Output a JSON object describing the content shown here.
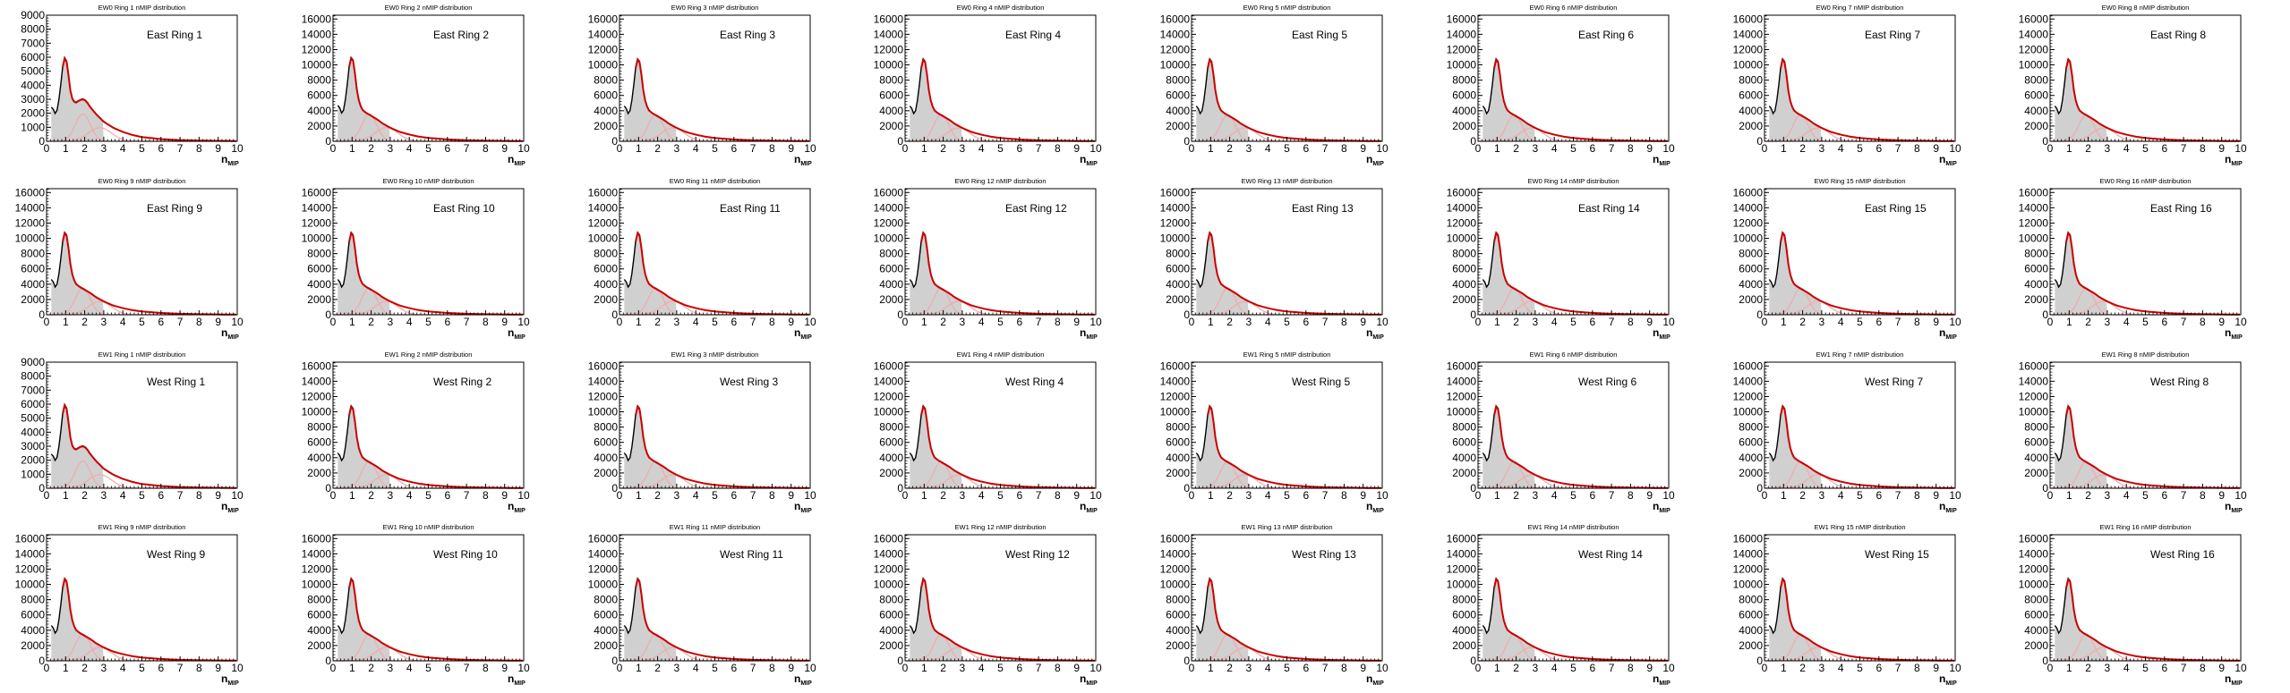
{
  "chart_data": {
    "type": "histogram-grid",
    "layout": {
      "rows": 4,
      "cols": 8
    },
    "xlabel": "n",
    "xlabel_sub": "MIP",
    "xlim": [
      0,
      10
    ],
    "x_ticks": [
      "0",
      "1",
      "2",
      "3",
      "4",
      "5",
      "6",
      "7",
      "8",
      "9",
      "10"
    ],
    "colors": {
      "fill": "#d0d0d0",
      "fit": "#cc0000",
      "pink": "#f2aaaa",
      "data": "#000000"
    },
    "shape": {
      "x": [
        0.3,
        0.5,
        0.7,
        0.8,
        0.9,
        1.0,
        1.1,
        1.2,
        1.3,
        1.5,
        1.7,
        2.0,
        2.3,
        2.6,
        3.0,
        3.5,
        4.0,
        4.5,
        5.0,
        6.0,
        7.0,
        8.0,
        9.0,
        10.0
      ],
      "rel": [
        0.42,
        0.3,
        0.55,
        0.8,
        0.96,
        1.0,
        0.9,
        0.7,
        0.52,
        0.38,
        0.34,
        0.3,
        0.26,
        0.21,
        0.16,
        0.11,
        0.08,
        0.055,
        0.04,
        0.022,
        0.012,
        0.007,
        0.004,
        0.002
      ]
    },
    "shape_double": {
      "x": [
        0.3,
        0.5,
        0.7,
        0.8,
        0.9,
        1.0,
        1.1,
        1.2,
        1.3,
        1.5,
        1.7,
        1.9,
        2.1,
        2.3,
        2.6,
        3.0,
        3.5,
        4.0,
        4.5,
        5.0,
        6.0,
        7.0,
        8.0,
        9.0,
        10.0
      ],
      "rel": [
        0.4,
        0.3,
        0.55,
        0.8,
        0.96,
        1.0,
        0.88,
        0.68,
        0.52,
        0.45,
        0.48,
        0.5,
        0.47,
        0.4,
        0.32,
        0.23,
        0.16,
        0.11,
        0.075,
        0.05,
        0.026,
        0.014,
        0.008,
        0.005,
        0.003
      ]
    },
    "panels": [
      {
        "title": "EW0 Ring 1 nMIP distribution",
        "label": "East Ring 1",
        "yticks": [
          "0",
          "1000",
          "2000",
          "3000",
          "4000",
          "5000",
          "6000",
          "7000",
          "8000",
          "9000"
        ],
        "ymax": 9000,
        "peak": 6100,
        "double": true
      },
      {
        "title": "EW0 Ring 2 nMIP distribution",
        "label": "East Ring 2",
        "yticks": [
          "0",
          "2000",
          "4000",
          "6000",
          "8000",
          "10000",
          "12000",
          "14000",
          "16000"
        ],
        "ymax": 16500,
        "peak": 11200,
        "double": false
      },
      {
        "title": "EW0 Ring 3 nMIP distribution",
        "label": "East Ring 3",
        "yticks": [
          "0",
          "2000",
          "4000",
          "6000",
          "8000",
          "10000",
          "12000",
          "14000",
          "16000"
        ],
        "ymax": 16500,
        "peak": 11000,
        "double": false
      },
      {
        "title": "EW0 Ring 4 nMIP distribution",
        "label": "East Ring 4",
        "yticks": [
          "0",
          "2000",
          "4000",
          "6000",
          "8000",
          "10000",
          "12000",
          "14000",
          "16000"
        ],
        "ymax": 16500,
        "peak": 11000,
        "double": false
      },
      {
        "title": "EW0 Ring 5 nMIP distribution",
        "label": "East Ring 5",
        "yticks": [
          "0",
          "2000",
          "4000",
          "6000",
          "8000",
          "10000",
          "12000",
          "14000",
          "16000"
        ],
        "ymax": 16500,
        "peak": 11000,
        "double": false
      },
      {
        "title": "EW0 Ring 6 nMIP distribution",
        "label": "East Ring 6",
        "yticks": [
          "0",
          "2000",
          "4000",
          "6000",
          "8000",
          "10000",
          "12000",
          "14000",
          "16000"
        ],
        "ymax": 16500,
        "peak": 11000,
        "double": false
      },
      {
        "title": "EW0 Ring 7 nMIP distribution",
        "label": "East Ring 7",
        "yticks": [
          "0",
          "2000",
          "4000",
          "6000",
          "8000",
          "10000",
          "12000",
          "14000",
          "16000"
        ],
        "ymax": 16500,
        "peak": 11000,
        "double": false
      },
      {
        "title": "EW0 Ring 8 nMIP distribution",
        "label": "East Ring 8",
        "yticks": [
          "0",
          "2000",
          "4000",
          "6000",
          "8000",
          "10000",
          "12000",
          "14000",
          "16000"
        ],
        "ymax": 16500,
        "peak": 11000,
        "double": false
      },
      {
        "title": "EW0 Ring 9 nMIP distribution",
        "label": "East Ring 9",
        "yticks": [
          "0",
          "2000",
          "4000",
          "6000",
          "8000",
          "10000",
          "12000",
          "14000",
          "16000"
        ],
        "ymax": 16500,
        "peak": 11000,
        "double": false
      },
      {
        "title": "EW0 Ring 10 nMIP distribution",
        "label": "East Ring 10",
        "yticks": [
          "0",
          "2000",
          "4000",
          "6000",
          "8000",
          "10000",
          "12000",
          "14000",
          "16000"
        ],
        "ymax": 16500,
        "peak": 11000,
        "double": false
      },
      {
        "title": "EW0 Ring 11 nMIP distribution",
        "label": "East Ring 11",
        "yticks": [
          "0",
          "2000",
          "4000",
          "6000",
          "8000",
          "10000",
          "12000",
          "14000",
          "16000"
        ],
        "ymax": 16500,
        "peak": 11000,
        "double": false
      },
      {
        "title": "EW0 Ring 12 nMIP distribution",
        "label": "East Ring 12",
        "yticks": [
          "0",
          "2000",
          "4000",
          "6000",
          "8000",
          "10000",
          "12000",
          "14000",
          "16000"
        ],
        "ymax": 16500,
        "peak": 11000,
        "double": false
      },
      {
        "title": "EW0 Ring 13 nMIP distribution",
        "label": "East Ring 13",
        "yticks": [
          "0",
          "2000",
          "4000",
          "6000",
          "8000",
          "10000",
          "12000",
          "14000",
          "16000"
        ],
        "ymax": 16500,
        "peak": 11000,
        "double": false
      },
      {
        "title": "EW0 Ring 14 nMIP distribution",
        "label": "East Ring 14",
        "yticks": [
          "0",
          "2000",
          "4000",
          "6000",
          "8000",
          "10000",
          "12000",
          "14000",
          "16000"
        ],
        "ymax": 16500,
        "peak": 11000,
        "double": false
      },
      {
        "title": "EW0 Ring 15 nMIP distribution",
        "label": "East Ring 15",
        "yticks": [
          "0",
          "2000",
          "4000",
          "6000",
          "8000",
          "10000",
          "12000",
          "14000",
          "16000"
        ],
        "ymax": 16500,
        "peak": 11000,
        "double": false
      },
      {
        "title": "EW0 Ring 16 nMIP distribution",
        "label": "East Ring 16",
        "yticks": [
          "0",
          "2000",
          "4000",
          "6000",
          "8000",
          "10000",
          "12000",
          "14000",
          "16000"
        ],
        "ymax": 16500,
        "peak": 11000,
        "double": false
      },
      {
        "title": "EW1 Ring 1 nMIP distribution",
        "label": "West Ring 1",
        "yticks": [
          "0",
          "1000",
          "2000",
          "3000",
          "4000",
          "5000",
          "6000",
          "7000",
          "8000",
          "9000"
        ],
        "ymax": 9000,
        "peak": 6100,
        "double": true
      },
      {
        "title": "EW1 Ring 2 nMIP distribution",
        "label": "West Ring 2",
        "yticks": [
          "0",
          "2000",
          "4000",
          "6000",
          "8000",
          "10000",
          "12000",
          "14000",
          "16000"
        ],
        "ymax": 16500,
        "peak": 11000,
        "double": false
      },
      {
        "title": "EW1 Ring 3 nMIP distribution",
        "label": "West Ring 3",
        "yticks": [
          "0",
          "2000",
          "4000",
          "6000",
          "8000",
          "10000",
          "12000",
          "14000",
          "16000"
        ],
        "ymax": 16500,
        "peak": 11000,
        "double": false
      },
      {
        "title": "EW1 Ring 4 nMIP distribution",
        "label": "West Ring 4",
        "yticks": [
          "0",
          "2000",
          "4000",
          "6000",
          "8000",
          "10000",
          "12000",
          "14000",
          "16000"
        ],
        "ymax": 16500,
        "peak": 11000,
        "double": false
      },
      {
        "title": "EW1 Ring 5 nMIP distribution",
        "label": "West Ring 5",
        "yticks": [
          "0",
          "2000",
          "4000",
          "6000",
          "8000",
          "10000",
          "12000",
          "14000",
          "16000"
        ],
        "ymax": 16500,
        "peak": 11000,
        "double": false
      },
      {
        "title": "EW1 Ring 6 nMIP distribution",
        "label": "West Ring 6",
        "yticks": [
          "0",
          "2000",
          "4000",
          "6000",
          "8000",
          "10000",
          "12000",
          "14000",
          "16000"
        ],
        "ymax": 16500,
        "peak": 11000,
        "double": false
      },
      {
        "title": "EW1 Ring 7 nMIP distribution",
        "label": "West Ring 7",
        "yticks": [
          "0",
          "2000",
          "4000",
          "6000",
          "8000",
          "10000",
          "12000",
          "14000",
          "16000"
        ],
        "ymax": 16500,
        "peak": 11000,
        "double": false
      },
      {
        "title": "EW1 Ring 8 nMIP distribution",
        "label": "West Ring 8",
        "yticks": [
          "0",
          "2000",
          "4000",
          "6000",
          "8000",
          "10000",
          "12000",
          "14000",
          "16000"
        ],
        "ymax": 16500,
        "peak": 11000,
        "double": false
      },
      {
        "title": "EW1 Ring 9 nMIP distribution",
        "label": "West Ring 9",
        "yticks": [
          "0",
          "2000",
          "4000",
          "6000",
          "8000",
          "10000",
          "12000",
          "14000",
          "16000"
        ],
        "ymax": 16500,
        "peak": 11000,
        "double": false
      },
      {
        "title": "EW1 Ring 10 nMIP distribution",
        "label": "West Ring 10",
        "yticks": [
          "0",
          "2000",
          "4000",
          "6000",
          "8000",
          "10000",
          "12000",
          "14000",
          "16000"
        ],
        "ymax": 16500,
        "peak": 11000,
        "double": false
      },
      {
        "title": "EW1 Ring 11 nMIP distribution",
        "label": "West Ring 11",
        "yticks": [
          "0",
          "2000",
          "4000",
          "6000",
          "8000",
          "10000",
          "12000",
          "14000",
          "16000"
        ],
        "ymax": 16500,
        "peak": 11000,
        "double": false
      },
      {
        "title": "EW1 Ring 12 nMIP distribution",
        "label": "West Ring 12",
        "yticks": [
          "0",
          "2000",
          "4000",
          "6000",
          "8000",
          "10000",
          "12000",
          "14000",
          "16000"
        ],
        "ymax": 16500,
        "peak": 11000,
        "double": false
      },
      {
        "title": "EW1 Ring 13 nMIP distribution",
        "label": "West Ring 13",
        "yticks": [
          "0",
          "2000",
          "4000",
          "6000",
          "8000",
          "10000",
          "12000",
          "14000",
          "16000"
        ],
        "ymax": 16500,
        "peak": 11000,
        "double": false
      },
      {
        "title": "EW1 Ring 14 nMIP distribution",
        "label": "West Ring 14",
        "yticks": [
          "0",
          "2000",
          "4000",
          "6000",
          "8000",
          "10000",
          "12000",
          "14000",
          "16000"
        ],
        "ymax": 16500,
        "peak": 11000,
        "double": false
      },
      {
        "title": "EW1 Ring 15 nMIP distribution",
        "label": "West Ring 15",
        "yticks": [
          "0",
          "2000",
          "4000",
          "6000",
          "8000",
          "10000",
          "12000",
          "14000",
          "16000"
        ],
        "ymax": 16500,
        "peak": 11000,
        "double": false
      },
      {
        "title": "EW1 Ring 16 nMIP distribution",
        "label": "West Ring 16",
        "yticks": [
          "0",
          "2000",
          "4000",
          "6000",
          "8000",
          "10000",
          "12000",
          "14000",
          "16000"
        ],
        "ymax": 16500,
        "peak": 11000,
        "double": false
      }
    ]
  }
}
